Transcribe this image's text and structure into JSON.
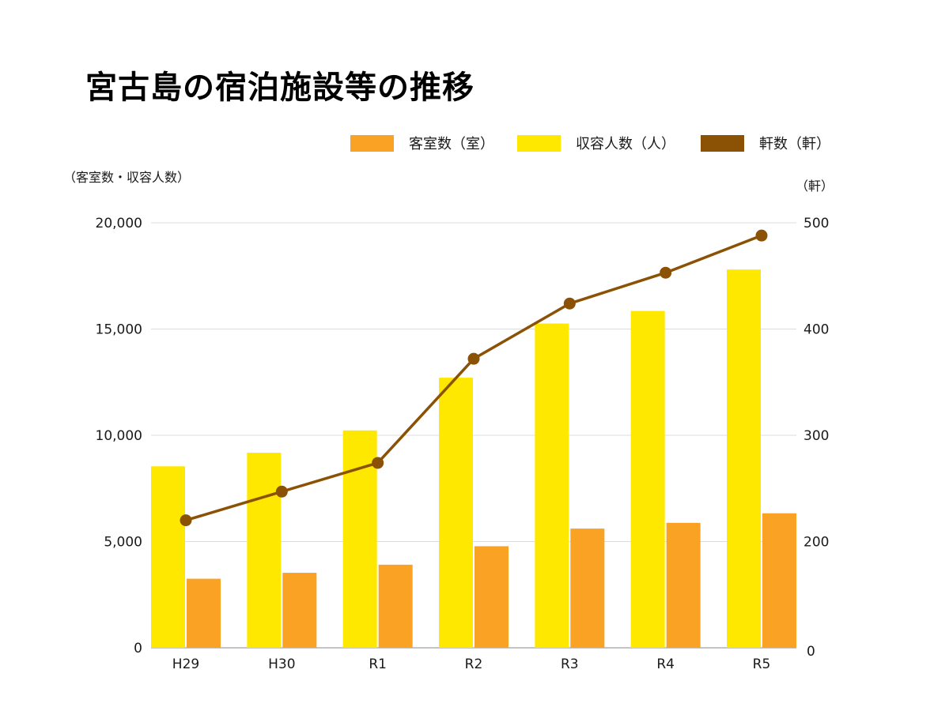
{
  "title": "宮古島の宿泊施設等の推移",
  "left_axis_title": "（客室数・収容人数）",
  "right_axis_title": "（軒）",
  "colors": {
    "rooms": "#F9A223",
    "capacity": "#FFE800",
    "facilities": "#8B5206",
    "grid": "#dcdcdc",
    "axis": "#b0b0b0"
  },
  "chart_data": {
    "type": "bar",
    "title": "宮古島の宿泊施設等の推移",
    "categories": [
      "H29",
      "H30",
      "R1",
      "R2",
      "R3",
      "R4",
      "R5"
    ],
    "series": [
      {
        "name": "収容人数（人）",
        "key": "capacity",
        "type": "bar",
        "axis": "left",
        "values": [
          8540,
          9180,
          10230,
          12710,
          15260,
          15850,
          17800
        ]
      },
      {
        "name": "客室数（室）",
        "key": "rooms",
        "type": "bar",
        "axis": "left",
        "values": [
          3250,
          3530,
          3910,
          4780,
          5610,
          5880,
          6330
        ]
      },
      {
        "name": "軒数（軒）",
        "key": "facilities",
        "type": "line",
        "axis": "right",
        "values": [
          220,
          247,
          274,
          372,
          424,
          453,
          488
        ]
      }
    ],
    "legend": [
      {
        "label": "客室数（室）",
        "key": "rooms"
      },
      {
        "label": "収容人数（人）",
        "key": "capacity"
      },
      {
        "label": "軒数（軒）",
        "key": "facilities"
      }
    ],
    "legend_position": "top-right",
    "ylabel": "（客室数・収容人数）",
    "y2label": "（軒）",
    "ylim": [
      0,
      20000
    ],
    "yticks": [
      0,
      5000,
      10000,
      15000,
      20000
    ],
    "ytick_labels": [
      "0",
      "5,000",
      "10,000",
      "15,000",
      "20,000"
    ],
    "y2lim": [
      100,
      500
    ],
    "y2ticks": [
      200,
      300,
      400,
      500
    ],
    "y2tick_labels": [
      "200",
      "300",
      "400",
      "500"
    ],
    "y2_bottom_label": "0",
    "grid": true
  }
}
